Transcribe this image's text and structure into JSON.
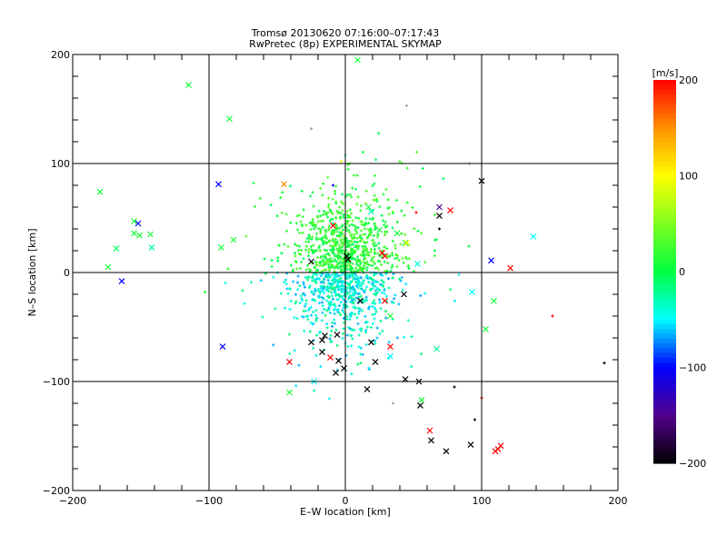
{
  "chart_data": {
    "type": "scatter",
    "title": "Tromsø 20130620 07:16:00–07:17:43",
    "subtitle": "RwPretec (8p) EXPERIMENTAL SKYMAP",
    "xlabel": "E–W location [km]",
    "ylabel": "N–S location [km]",
    "xlim": [
      -200,
      200
    ],
    "ylim": [
      -200,
      200
    ],
    "xticks": [
      -200,
      -100,
      0,
      100,
      200
    ],
    "yticks": [
      -200,
      -100,
      0,
      100,
      200
    ],
    "xtick_labels": [
      "−200",
      "−100",
      "0",
      "100",
      "200"
    ],
    "ytick_labels": [
      "−200",
      "−100",
      "0",
      "100",
      "200"
    ],
    "minor_tick_step": 20,
    "grid": true,
    "colorbar": {
      "label": "[m/s]",
      "range": [
        -200,
        200
      ],
      "ticks": [
        200,
        100,
        0,
        -100,
        -200
      ],
      "tick_labels": [
        "200",
        "100",
        "0",
        "−100",
        "−200"
      ],
      "stops": [
        {
          "v": -200,
          "c": "#000000"
        },
        {
          "v": -150,
          "c": "#52008c"
        },
        {
          "v": -100,
          "c": "#0000ff"
        },
        {
          "v": -50,
          "c": "#00ffff"
        },
        {
          "v": 0,
          "c": "#00ff40"
        },
        {
          "v": 100,
          "c": "#ffff00"
        },
        {
          "v": 150,
          "c": "#ff9000"
        },
        {
          "v": 200,
          "c": "#ff0000"
        }
      ],
      "placement": "right"
    },
    "cross_points": [
      {
        "x": 9,
        "y": 195,
        "v": 10
      },
      {
        "x": -115,
        "y": 172,
        "v": 10
      },
      {
        "x": -85,
        "y": 141,
        "v": 10
      },
      {
        "x": 100,
        "y": 84,
        "v": -200
      },
      {
        "x": -93,
        "y": 81,
        "v": -100
      },
      {
        "x": -180,
        "y": 74,
        "v": 10
      },
      {
        "x": -155,
        "y": 47,
        "v": 10
      },
      {
        "x": -152,
        "y": 45,
        "v": -100
      },
      {
        "x": -155,
        "y": 36,
        "v": 10
      },
      {
        "x": -151,
        "y": 34,
        "v": 10
      },
      {
        "x": -143,
        "y": 35,
        "v": 10
      },
      {
        "x": -168,
        "y": 22,
        "v": -10
      },
      {
        "x": -142,
        "y": 23,
        "v": -20
      },
      {
        "x": -174,
        "y": 5,
        "v": 10
      },
      {
        "x": -164,
        "y": -8,
        "v": -100
      },
      {
        "x": -90,
        "y": -68,
        "v": -100
      },
      {
        "x": -91,
        "y": 23,
        "v": 10
      },
      {
        "x": -82,
        "y": 30,
        "v": 10
      },
      {
        "x": 69,
        "y": 60,
        "v": -150
      },
      {
        "x": 69,
        "y": 52,
        "v": -200
      },
      {
        "x": 77,
        "y": 57,
        "v": 200
      },
      {
        "x": 107,
        "y": 11,
        "v": -100
      },
      {
        "x": 121,
        "y": 4,
        "v": 200
      },
      {
        "x": 138,
        "y": 33,
        "v": -50
      },
      {
        "x": 93,
        "y": -18,
        "v": -50
      },
      {
        "x": 109,
        "y": -26,
        "v": 10
      },
      {
        "x": 103,
        "y": -52,
        "v": 10
      },
      {
        "x": -41,
        "y": -110,
        "v": 10
      },
      {
        "x": -41,
        "y": -82,
        "v": 200
      },
      {
        "x": 54,
        "y": -100,
        "v": -200
      },
      {
        "x": 56,
        "y": -117,
        "v": 10
      },
      {
        "x": 55,
        "y": -122,
        "v": -200
      },
      {
        "x": 62,
        "y": -145,
        "v": 200
      },
      {
        "x": 63,
        "y": -154,
        "v": -200
      },
      {
        "x": 74,
        "y": -164,
        "v": -200
      },
      {
        "x": 92,
        "y": -158,
        "v": -200
      },
      {
        "x": 110,
        "y": -164,
        "v": 200
      },
      {
        "x": 114,
        "y": -159,
        "v": 200
      },
      {
        "x": 112,
        "y": -162,
        "v": 200
      },
      {
        "x": 16,
        "y": -107,
        "v": -200
      },
      {
        "x": 44,
        "y": -98,
        "v": -200
      },
      {
        "x": 67,
        "y": -70,
        "v": -20
      },
      {
        "x": 33,
        "y": -77,
        "v": -50
      },
      {
        "x": 22,
        "y": -82,
        "v": -200
      },
      {
        "x": 27,
        "y": 18,
        "v": 200
      },
      {
        "x": 29,
        "y": 15,
        "v": 200
      },
      {
        "x": 19,
        "y": 56,
        "v": -30
      },
      {
        "x": 17,
        "y": 60,
        "v": 10
      },
      {
        "x": 44,
        "y": 27,
        "v": 10
      },
      {
        "x": 38,
        "y": 36,
        "v": 10
      },
      {
        "x": 53,
        "y": 8,
        "v": -40
      },
      {
        "x": 43,
        "y": -20,
        "v": -200
      },
      {
        "x": 29,
        "y": -26,
        "v": 200
      },
      {
        "x": 33,
        "y": -40,
        "v": 10
      },
      {
        "x": 33,
        "y": -68,
        "v": 200
      },
      {
        "x": 19,
        "y": -64,
        "v": -200
      },
      {
        "x": 11,
        "y": -26,
        "v": -200
      },
      {
        "x": -6,
        "y": -57,
        "v": -200
      },
      {
        "x": -15,
        "y": -58,
        "v": -200
      },
      {
        "x": -17,
        "y": -62,
        "v": -200
      },
      {
        "x": -25,
        "y": -64,
        "v": -200
      },
      {
        "x": -17,
        "y": -73,
        "v": -200
      },
      {
        "x": -5,
        "y": -81,
        "v": -200
      },
      {
        "x": -7,
        "y": -92,
        "v": -200
      },
      {
        "x": -11,
        "y": -78,
        "v": 200
      },
      {
        "x": -1,
        "y": -88,
        "v": -200
      },
      {
        "x": -23,
        "y": -100,
        "v": -50
      },
      {
        "x": -9,
        "y": 43,
        "v": 200
      },
      {
        "x": 1,
        "y": 15,
        "v": -200
      },
      {
        "x": -45,
        "y": 81,
        "v": 150
      },
      {
        "x": 25,
        "y": 39,
        "v": 10
      },
      {
        "x": -25,
        "y": 10,
        "v": -200
      },
      {
        "x": 2,
        "y": 12,
        "v": -200
      },
      {
        "x": 45,
        "y": 27,
        "v": 100
      }
    ],
    "small_points": [
      {
        "x": 91,
        "y": 100,
        "v": null
      },
      {
        "x": 100,
        "y": -115,
        "v": 200
      },
      {
        "x": 152,
        "y": -40,
        "v": 200
      },
      {
        "x": 190,
        "y": -83,
        "v": -200
      },
      {
        "x": -3,
        "y": 102,
        "v": 100
      },
      {
        "x": -9,
        "y": 80,
        "v": -100
      },
      {
        "x": 52,
        "y": 55,
        "v": 200
      },
      {
        "x": 69,
        "y": 40,
        "v": -200
      },
      {
        "x": 45,
        "y": 153,
        "v": null
      },
      {
        "x": -25,
        "y": 132,
        "v": null
      },
      {
        "x": -103,
        "y": -18,
        "v": 10
      },
      {
        "x": 80,
        "y": -105,
        "v": -200
      },
      {
        "x": 95,
        "y": -135,
        "v": -200
      },
      {
        "x": 35,
        "y": -120,
        "v": null
      }
    ],
    "cloud": {
      "count": 1100,
      "center": [
        0,
        5
      ],
      "sd_km": [
        17,
        30
      ],
      "halo_count": 260,
      "halo_sd_km": [
        32,
        45
      ],
      "value_north": [
        -10,
        40
      ],
      "value_south": [
        -70,
        -10
      ],
      "seed": 20130620
    }
  }
}
